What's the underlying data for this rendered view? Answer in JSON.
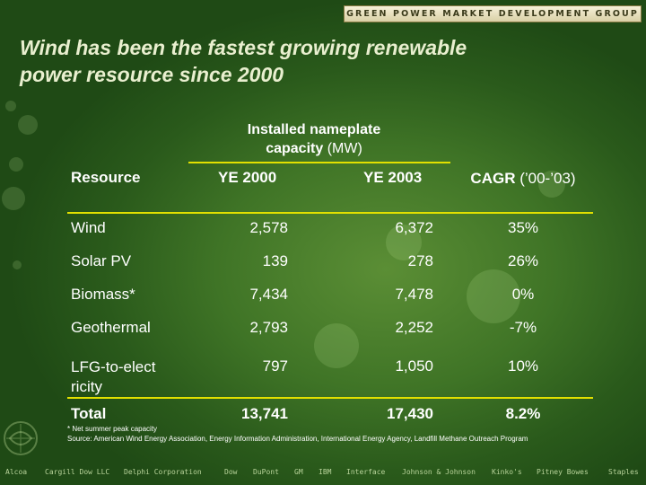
{
  "header": {
    "brand": "GREEN POWER MARKET DEVELOPMENT GROUP"
  },
  "title": {
    "line1": "Wind has been the fastest growing renewable",
    "line2": "power resource since 2000"
  },
  "capacity_header": {
    "bold": "Installed nameplate capacity",
    "unit": " (MW)"
  },
  "table": {
    "columns": {
      "resource": "Resource",
      "ye2000": "YE 2000",
      "ye2003": "YE 2003",
      "cagr_bold": "CAGR",
      "cagr_rest": " (’00-’03)"
    },
    "rows": [
      {
        "resource": "Wind",
        "ye2000": "2,578",
        "ye2003": "6,372",
        "cagr": "35%"
      },
      {
        "resource": "Solar PV",
        "ye2000": "139",
        "ye2003": "278",
        "cagr": "26%"
      },
      {
        "resource": "Biomass*",
        "ye2000": "7,434",
        "ye2003": "7,478",
        "cagr": "0%"
      },
      {
        "resource": "Geothermal",
        "ye2000": "2,793",
        "ye2003": "2,252",
        "cagr": "-7%"
      },
      {
        "resource": "LFG-to-electricity",
        "ye2000": "797",
        "ye2003": "1,050",
        "cagr": "10%"
      }
    ],
    "total": {
      "resource": "Total",
      "ye2000": "13,741",
      "ye2003": "17,430",
      "cagr": "8.2%"
    }
  },
  "footnotes": {
    "asterisk": "*  Net summer peak capacity",
    "source": "Source: American Wind Energy Association, Energy Information Administration, International Energy Agency, Landfill Methane Outreach Program"
  },
  "footer_companies": [
    "Alcoa",
    "Cargill Dow LLC",
    "Delphi Corporation",
    "Dow",
    "DuPont",
    "GM",
    "IBM",
    "Interface",
    "Johnson & Johnson",
    "Kinko's",
    "Pitney Bowes",
    "Staples"
  ],
  "colors": {
    "accent_line": "#e2e000",
    "background": "#3f7426",
    "title": "#e9efcf"
  }
}
